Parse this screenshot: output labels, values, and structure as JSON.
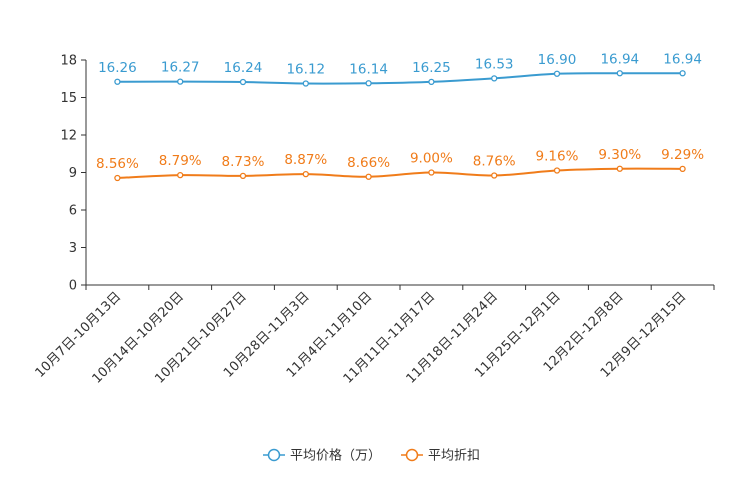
{
  "chart_data": {
    "type": "line",
    "title": "",
    "xlabel": "",
    "ylabel": "",
    "ylim": [
      0,
      18
    ],
    "yticks": [
      0,
      3,
      6,
      9,
      12,
      15,
      18
    ],
    "grid": false,
    "legend_position": "bottom-center",
    "categories": [
      "10月7日-10月13日",
      "10月14日-10月20日",
      "10月21日-10月27日",
      "10月28日-11月3日",
      "11月4日-11月10日",
      "11月11日-11月17日",
      "11月18日-11月24日",
      "11月25日-12月1日",
      "12月2日-12月8日",
      "12月9日-12月15日"
    ],
    "series": [
      {
        "name": "平均价格（万）",
        "color": "#3a9bd0",
        "values": [
          16.26,
          16.27,
          16.24,
          16.12,
          16.14,
          16.25,
          16.53,
          16.9,
          16.94,
          16.94
        ],
        "labels": [
          "16.26",
          "16.27",
          "16.24",
          "16.12",
          "16.14",
          "16.25",
          "16.53",
          "16.90",
          "16.94",
          "16.94"
        ]
      },
      {
        "name": "平均折扣",
        "color": "#f07c1a",
        "values": [
          8.56,
          8.79,
          8.73,
          8.87,
          8.66,
          9.0,
          8.76,
          9.16,
          9.3,
          9.29
        ],
        "labels": [
          "8.56%",
          "8.79%",
          "8.73%",
          "8.87%",
          "8.66%",
          "9.00%",
          "8.76%",
          "9.16%",
          "9.30%",
          "9.29%"
        ]
      }
    ]
  }
}
